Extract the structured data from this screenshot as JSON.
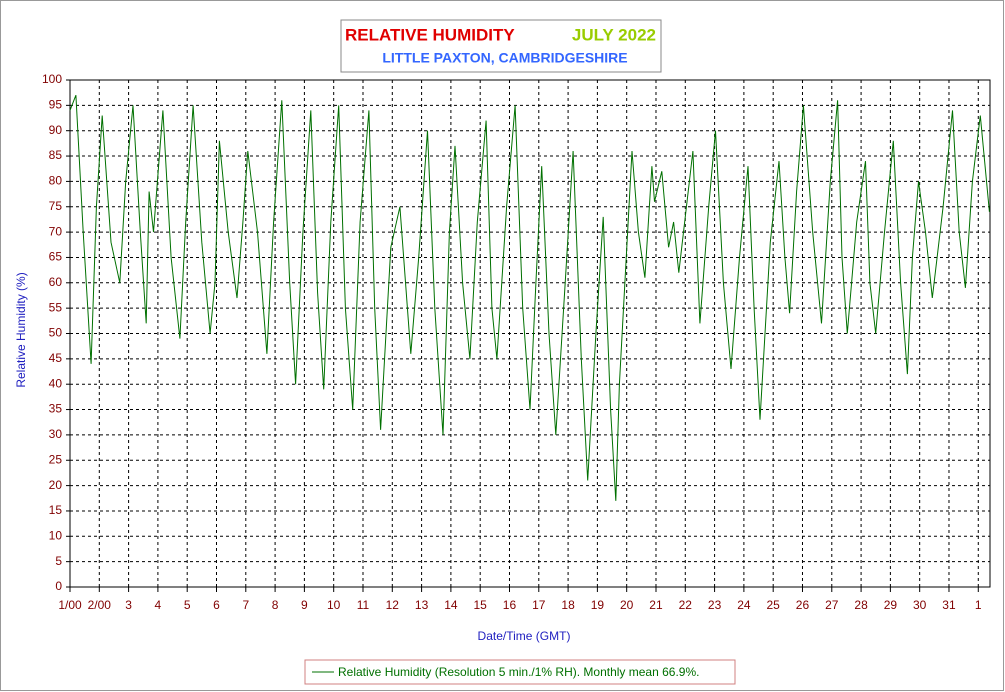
{
  "chart_data": {
    "type": "line",
    "title": "RELATIVE HUMIDITY",
    "title_period": "JULY 2022",
    "subtitle": "LITTLE PAXTON, CAMBRIDGESHIRE",
    "y_label": "Relative Humidity (%)",
    "x_label": "Date/Time (GMT)",
    "grid": true,
    "xlim": [
      0,
      31.4
    ],
    "ylim": [
      0,
      100
    ],
    "yticks": [
      0,
      5,
      10,
      15,
      20,
      25,
      30,
      35,
      40,
      45,
      50,
      55,
      60,
      65,
      70,
      75,
      80,
      85,
      90,
      95,
      100
    ],
    "xticks": [
      {
        "value": 0,
        "label": "1/00"
      },
      {
        "value": 1,
        "label": "2/00"
      },
      {
        "value": 2,
        "label": "3"
      },
      {
        "value": 3,
        "label": "4"
      },
      {
        "value": 4,
        "label": "5"
      },
      {
        "value": 5,
        "label": "6"
      },
      {
        "value": 6,
        "label": "7"
      },
      {
        "value": 7,
        "label": "8"
      },
      {
        "value": 8,
        "label": "9"
      },
      {
        "value": 9,
        "label": "10"
      },
      {
        "value": 10,
        "label": "11"
      },
      {
        "value": 11,
        "label": "12"
      },
      {
        "value": 12,
        "label": "13"
      },
      {
        "value": 13,
        "label": "14"
      },
      {
        "value": 14,
        "label": "15"
      },
      {
        "value": 15,
        "label": "16"
      },
      {
        "value": 16,
        "label": "17"
      },
      {
        "value": 17,
        "label": "18"
      },
      {
        "value": 18,
        "label": "19"
      },
      {
        "value": 19,
        "label": "20"
      },
      {
        "value": 20,
        "label": "21"
      },
      {
        "value": 21,
        "label": "22"
      },
      {
        "value": 22,
        "label": "23"
      },
      {
        "value": 23,
        "label": "24"
      },
      {
        "value": 24,
        "label": "25"
      },
      {
        "value": 25,
        "label": "26"
      },
      {
        "value": 26,
        "label": "27"
      },
      {
        "value": 27,
        "label": "28"
      },
      {
        "value": 28,
        "label": "29"
      },
      {
        "value": 29,
        "label": "30"
      },
      {
        "value": 30,
        "label": "31"
      },
      {
        "value": 31,
        "label": "1"
      }
    ],
    "series": [
      {
        "name": "Relative Humidity (Resolution 5 min./1% RH). Monthly mean 66.9%.",
        "color": "#007000",
        "x": [
          0,
          0.2,
          0.45,
          0.72,
          0.9,
          1.1,
          1.4,
          1.7,
          1.9,
          2.15,
          2.4,
          2.6,
          2.7,
          2.85,
          3.17,
          3.45,
          3.75,
          3.95,
          4.2,
          4.5,
          4.78,
          4.95,
          5.1,
          5.4,
          5.7,
          5.9,
          6.07,
          6.4,
          6.72,
          6.95,
          7.23,
          7.5,
          7.7,
          7.95,
          8.22,
          8.45,
          8.66,
          8.9,
          9.17,
          9.4,
          9.65,
          9.9,
          10.2,
          10.4,
          10.6,
          10.95,
          11.26,
          11.63,
          11.9,
          12.2,
          12.45,
          12.73,
          12.95,
          13.14,
          13.4,
          13.65,
          13.9,
          14.2,
          14.4,
          14.57,
          14.9,
          15.19,
          15.45,
          15.7,
          15.9,
          16.1,
          16.35,
          16.58,
          16.9,
          17.17,
          17.45,
          17.67,
          17.95,
          18.2,
          18.45,
          18.63,
          18.75,
          19.18,
          19.4,
          19.62,
          19.86,
          19.95,
          20.2,
          20.43,
          20.6,
          20.78,
          21.26,
          21.5,
          21.8,
          22.03,
          22.3,
          22.56,
          22.85,
          23.14,
          23.35,
          23.55,
          23.9,
          24.2,
          24.4,
          24.56,
          24.8,
          25.03,
          25.35,
          25.65,
          25.95,
          26.2,
          26.35,
          26.53,
          26.85,
          27.15,
          27.3,
          27.5,
          27.8,
          28.1,
          28.35,
          28.58,
          28.75,
          28.96,
          29.2,
          29.43,
          29.8,
          30.12,
          30.35,
          30.56,
          30.8,
          31.07,
          31.38
        ],
        "values": [
          94,
          97,
          70,
          44,
          75,
          93,
          68,
          60,
          80,
          95,
          70,
          52,
          78,
          70,
          94,
          65,
          49,
          72,
          95,
          68,
          50,
          60,
          88,
          70,
          57,
          72,
          86,
          70,
          46,
          72,
          96,
          60,
          40,
          70,
          94,
          58,
          39,
          72,
          95,
          55,
          35,
          72,
          94,
          55,
          31,
          67,
          75,
          46,
          65,
          90,
          55,
          30,
          70,
          87,
          60,
          45,
          72,
          92,
          55,
          45,
          75,
          95,
          55,
          35,
          60,
          83,
          50,
          30,
          60,
          86,
          45,
          21,
          50,
          73,
          35,
          17,
          40,
          86,
          70,
          61,
          83,
          76,
          82,
          67,
          72,
          62,
          86,
          52,
          75,
          90,
          60,
          43,
          65,
          83,
          55,
          33,
          68,
          84,
          65,
          54,
          78,
          95,
          70,
          52,
          80,
          96,
          65,
          50,
          72,
          84,
          60,
          50,
          70,
          88,
          60,
          42,
          65,
          80,
          70,
          57,
          75,
          94,
          70,
          59,
          80,
          93,
          74
        ]
      }
    ]
  }
}
